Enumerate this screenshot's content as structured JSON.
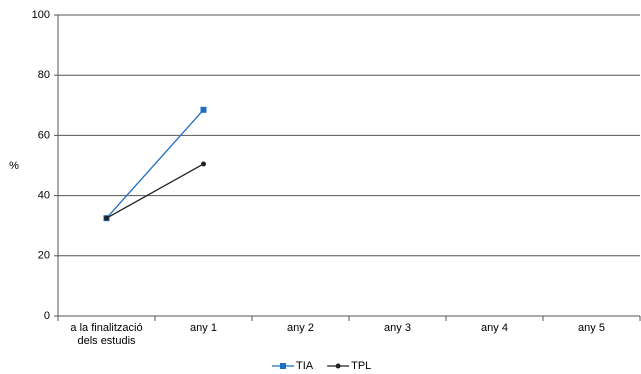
{
  "chart_data": {
    "type": "line",
    "categories": [
      "a la finalització dels estudis",
      "any 1",
      "any 2",
      "any 3",
      "any 4",
      "any 5"
    ],
    "series": [
      {
        "name": "TIA",
        "color": "#1f6fc0",
        "marker": "square",
        "values": [
          32.5,
          68.5,
          null,
          null,
          null,
          null
        ]
      },
      {
        "name": "TPL",
        "color": "#222222",
        "marker": "circle",
        "values": [
          32.5,
          50.5,
          null,
          null,
          null,
          null
        ]
      }
    ],
    "ylabel": "%",
    "ylim": [
      0,
      100
    ],
    "yticks": [
      0,
      20,
      40,
      60,
      80,
      100
    ],
    "grid": true,
    "legend": "bottom"
  }
}
